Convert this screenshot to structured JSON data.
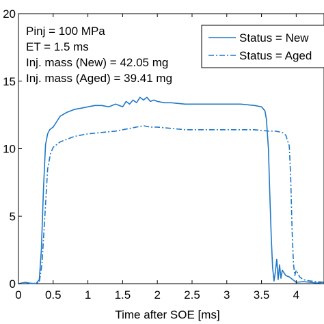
{
  "chart_data": {
    "type": "line",
    "title": "",
    "xlabel": "Time after SOE [ms]",
    "ylabel": "",
    "xlim": [
      0,
      4.4
    ],
    "ylim": [
      0,
      20
    ],
    "xticks": [
      0,
      0.5,
      1,
      1.5,
      2,
      2.5,
      3,
      3.5,
      4
    ],
    "xtick_labels": [
      "0",
      "0.5",
      "1",
      "1.5",
      "2",
      "2.5",
      "3",
      "3.5",
      "4"
    ],
    "yticks": [
      0,
      5,
      10,
      15,
      20
    ],
    "ytick_labels": [
      "0",
      "5",
      "10",
      "15",
      "20"
    ],
    "grid": false,
    "legend_position": "top-right",
    "annotations": [
      "Pinj = 100 MPa",
      "ET = 1.5 ms",
      "Inj. mass (New) = 42.05 mg",
      "Inj. mass (Aged) = 39.41 mg"
    ],
    "series": [
      {
        "name": "Status = New",
        "style": "solid",
        "color": "#1f77c8",
        "x": [
          0,
          0.05,
          0.1,
          0.15,
          0.2,
          0.25,
          0.3,
          0.33,
          0.36,
          0.39,
          0.42,
          0.45,
          0.5,
          0.55,
          0.6,
          0.7,
          0.8,
          0.9,
          1.0,
          1.1,
          1.2,
          1.3,
          1.4,
          1.5,
          1.55,
          1.6,
          1.65,
          1.7,
          1.75,
          1.8,
          1.85,
          1.9,
          1.95,
          2.0,
          2.1,
          2.2,
          2.4,
          2.6,
          2.8,
          3.0,
          3.2,
          3.4,
          3.5,
          3.55,
          3.57,
          3.6,
          3.62,
          3.64,
          3.66,
          3.68,
          3.7,
          3.72,
          3.74,
          3.76,
          3.78,
          3.8,
          3.85,
          3.9,
          4.0,
          4.1,
          4.2,
          4.3,
          4.4
        ],
        "y": [
          0,
          0.05,
          0.1,
          0.05,
          0.02,
          0,
          0.3,
          2.5,
          7.0,
          10.3,
          11.1,
          11.4,
          11.6,
          12.0,
          12.4,
          12.7,
          12.9,
          13.0,
          13.1,
          13.2,
          13.2,
          13.1,
          13.3,
          13.1,
          13.5,
          13.3,
          13.6,
          13.4,
          13.8,
          13.6,
          13.8,
          13.5,
          13.6,
          13.5,
          13.4,
          13.4,
          13.3,
          13.3,
          13.3,
          13.3,
          13.3,
          13.2,
          13.1,
          12.8,
          12.2,
          10.0,
          6.5,
          3.5,
          1.2,
          0.2,
          0.9,
          1.8,
          0.3,
          1.4,
          0.4,
          1.0,
          0.6,
          0.5,
          0.1,
          0.15,
          0.1,
          0.05,
          0.1
        ]
      },
      {
        "name": "Status = Aged",
        "style": "dashdot",
        "color": "#1f77c8",
        "x": [
          0,
          0.1,
          0.2,
          0.3,
          0.34,
          0.38,
          0.42,
          0.46,
          0.5,
          0.6,
          0.7,
          0.8,
          0.9,
          1.0,
          1.2,
          1.4,
          1.5,
          1.6,
          1.7,
          1.8,
          1.9,
          2.0,
          2.2,
          2.4,
          2.6,
          2.8,
          3.0,
          3.2,
          3.4,
          3.6,
          3.7,
          3.8,
          3.85,
          3.9,
          3.92,
          3.94,
          3.96,
          3.98,
          4.0,
          4.05,
          4.1,
          4.2,
          4.3,
          4.4
        ],
        "y": [
          0,
          0.05,
          0,
          0.1,
          1.5,
          5.0,
          8.5,
          9.6,
          10.1,
          10.5,
          10.7,
          10.9,
          11.0,
          11.1,
          11.2,
          11.3,
          11.4,
          11.5,
          11.6,
          11.7,
          11.6,
          11.6,
          11.5,
          11.4,
          11.4,
          11.4,
          11.4,
          11.4,
          11.4,
          11.3,
          11.3,
          11.2,
          11.0,
          10.2,
          8.0,
          4.0,
          1.5,
          0.6,
          1.0,
          0.5,
          0.3,
          0.2,
          0.15,
          0.1
        ]
      }
    ]
  }
}
